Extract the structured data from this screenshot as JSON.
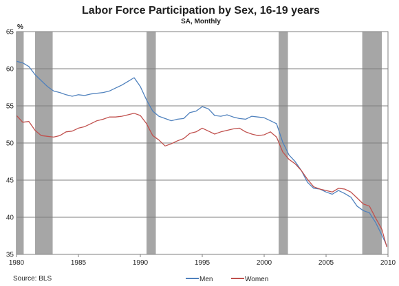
{
  "chart_data": {
    "type": "line",
    "title": "Labor Force Participation by Sex, 16-19 years",
    "subtitle": "SA, Monthly",
    "y_unit": "%",
    "source": "Source: BLS",
    "xlim": [
      1980,
      2010
    ],
    "ylim": [
      35,
      65
    ],
    "x_ticks": [
      1980,
      1985,
      1990,
      1995,
      2000,
      2005,
      2010
    ],
    "y_ticks": [
      35,
      40,
      45,
      50,
      55,
      60,
      65
    ],
    "grid": true,
    "legend_position": "bottom-right",
    "recessions": [
      [
        1980.0,
        1980.58
      ],
      [
        1981.5,
        1982.92
      ],
      [
        1990.5,
        1991.25
      ],
      [
        2001.17,
        2001.92
      ],
      [
        2007.92,
        2009.5
      ]
    ],
    "series": [
      {
        "name": "Men",
        "color": "#4f81bd",
        "x": [
          1980.0,
          1980.5,
          1981.0,
          1981.5,
          1982.0,
          1982.5,
          1983.0,
          1983.5,
          1984.0,
          1984.5,
          1985.0,
          1985.5,
          1986.0,
          1986.5,
          1987.0,
          1987.5,
          1988.0,
          1988.5,
          1989.0,
          1989.5,
          1990.0,
          1990.5,
          1991.0,
          1991.5,
          1992.0,
          1992.5,
          1993.0,
          1993.5,
          1994.0,
          1994.5,
          1995.0,
          1995.5,
          1996.0,
          1996.5,
          1997.0,
          1997.5,
          1998.0,
          1998.5,
          1999.0,
          1999.5,
          2000.0,
          2000.5,
          2001.0,
          2001.5,
          2002.0,
          2002.5,
          2003.0,
          2003.5,
          2004.0,
          2004.5,
          2005.0,
          2005.5,
          2006.0,
          2006.5,
          2007.0,
          2007.5,
          2008.0,
          2008.5,
          2009.0,
          2009.5,
          2009.9
        ],
        "values": [
          61.0,
          60.8,
          60.3,
          59.2,
          58.4,
          57.6,
          57.0,
          56.8,
          56.5,
          56.3,
          56.5,
          56.4,
          56.6,
          56.7,
          56.8,
          57.0,
          57.4,
          57.8,
          58.3,
          58.8,
          57.6,
          55.8,
          54.3,
          53.6,
          53.3,
          53.0,
          53.2,
          53.3,
          54.1,
          54.3,
          54.9,
          54.6,
          53.7,
          53.6,
          53.8,
          53.5,
          53.3,
          53.2,
          53.6,
          53.5,
          53.4,
          53.0,
          52.6,
          50.1,
          48.4,
          47.5,
          46.3,
          44.7,
          43.9,
          43.8,
          43.4,
          43.1,
          43.6,
          43.2,
          42.7,
          41.5,
          40.9,
          40.6,
          39.3,
          37.6,
          36.2
        ]
      },
      {
        "name": "Women",
        "color": "#c0504d",
        "x": [
          1980.0,
          1980.5,
          1981.0,
          1981.5,
          1982.0,
          1982.5,
          1983.0,
          1983.5,
          1984.0,
          1984.5,
          1985.0,
          1985.5,
          1986.0,
          1986.5,
          1987.0,
          1987.5,
          1988.0,
          1988.5,
          1989.0,
          1989.5,
          1990.0,
          1990.5,
          1991.0,
          1991.5,
          1992.0,
          1992.5,
          1993.0,
          1993.5,
          1994.0,
          1994.5,
          1995.0,
          1995.5,
          1996.0,
          1996.5,
          1997.0,
          1997.5,
          1998.0,
          1998.5,
          1999.0,
          1999.5,
          2000.0,
          2000.5,
          2001.0,
          2001.5,
          2002.0,
          2002.5,
          2003.0,
          2003.5,
          2004.0,
          2004.5,
          2005.0,
          2005.5,
          2006.0,
          2006.5,
          2007.0,
          2007.5,
          2008.0,
          2008.5,
          2009.0,
          2009.5,
          2009.9
        ],
        "values": [
          53.7,
          52.8,
          52.9,
          51.7,
          51.0,
          50.9,
          50.8,
          51.0,
          51.5,
          51.6,
          52.0,
          52.2,
          52.6,
          53.0,
          53.2,
          53.5,
          53.5,
          53.6,
          53.8,
          54.0,
          53.7,
          52.6,
          51.0,
          50.4,
          49.6,
          49.9,
          50.3,
          50.6,
          51.3,
          51.5,
          52.0,
          51.6,
          51.2,
          51.5,
          51.7,
          51.9,
          52.0,
          51.5,
          51.2,
          51.0,
          51.1,
          51.5,
          50.8,
          48.8,
          47.8,
          47.2,
          46.3,
          45.1,
          44.1,
          43.8,
          43.6,
          43.4,
          43.9,
          43.8,
          43.4,
          42.6,
          41.8,
          41.5,
          39.9,
          38.4,
          36.0
        ]
      }
    ]
  }
}
